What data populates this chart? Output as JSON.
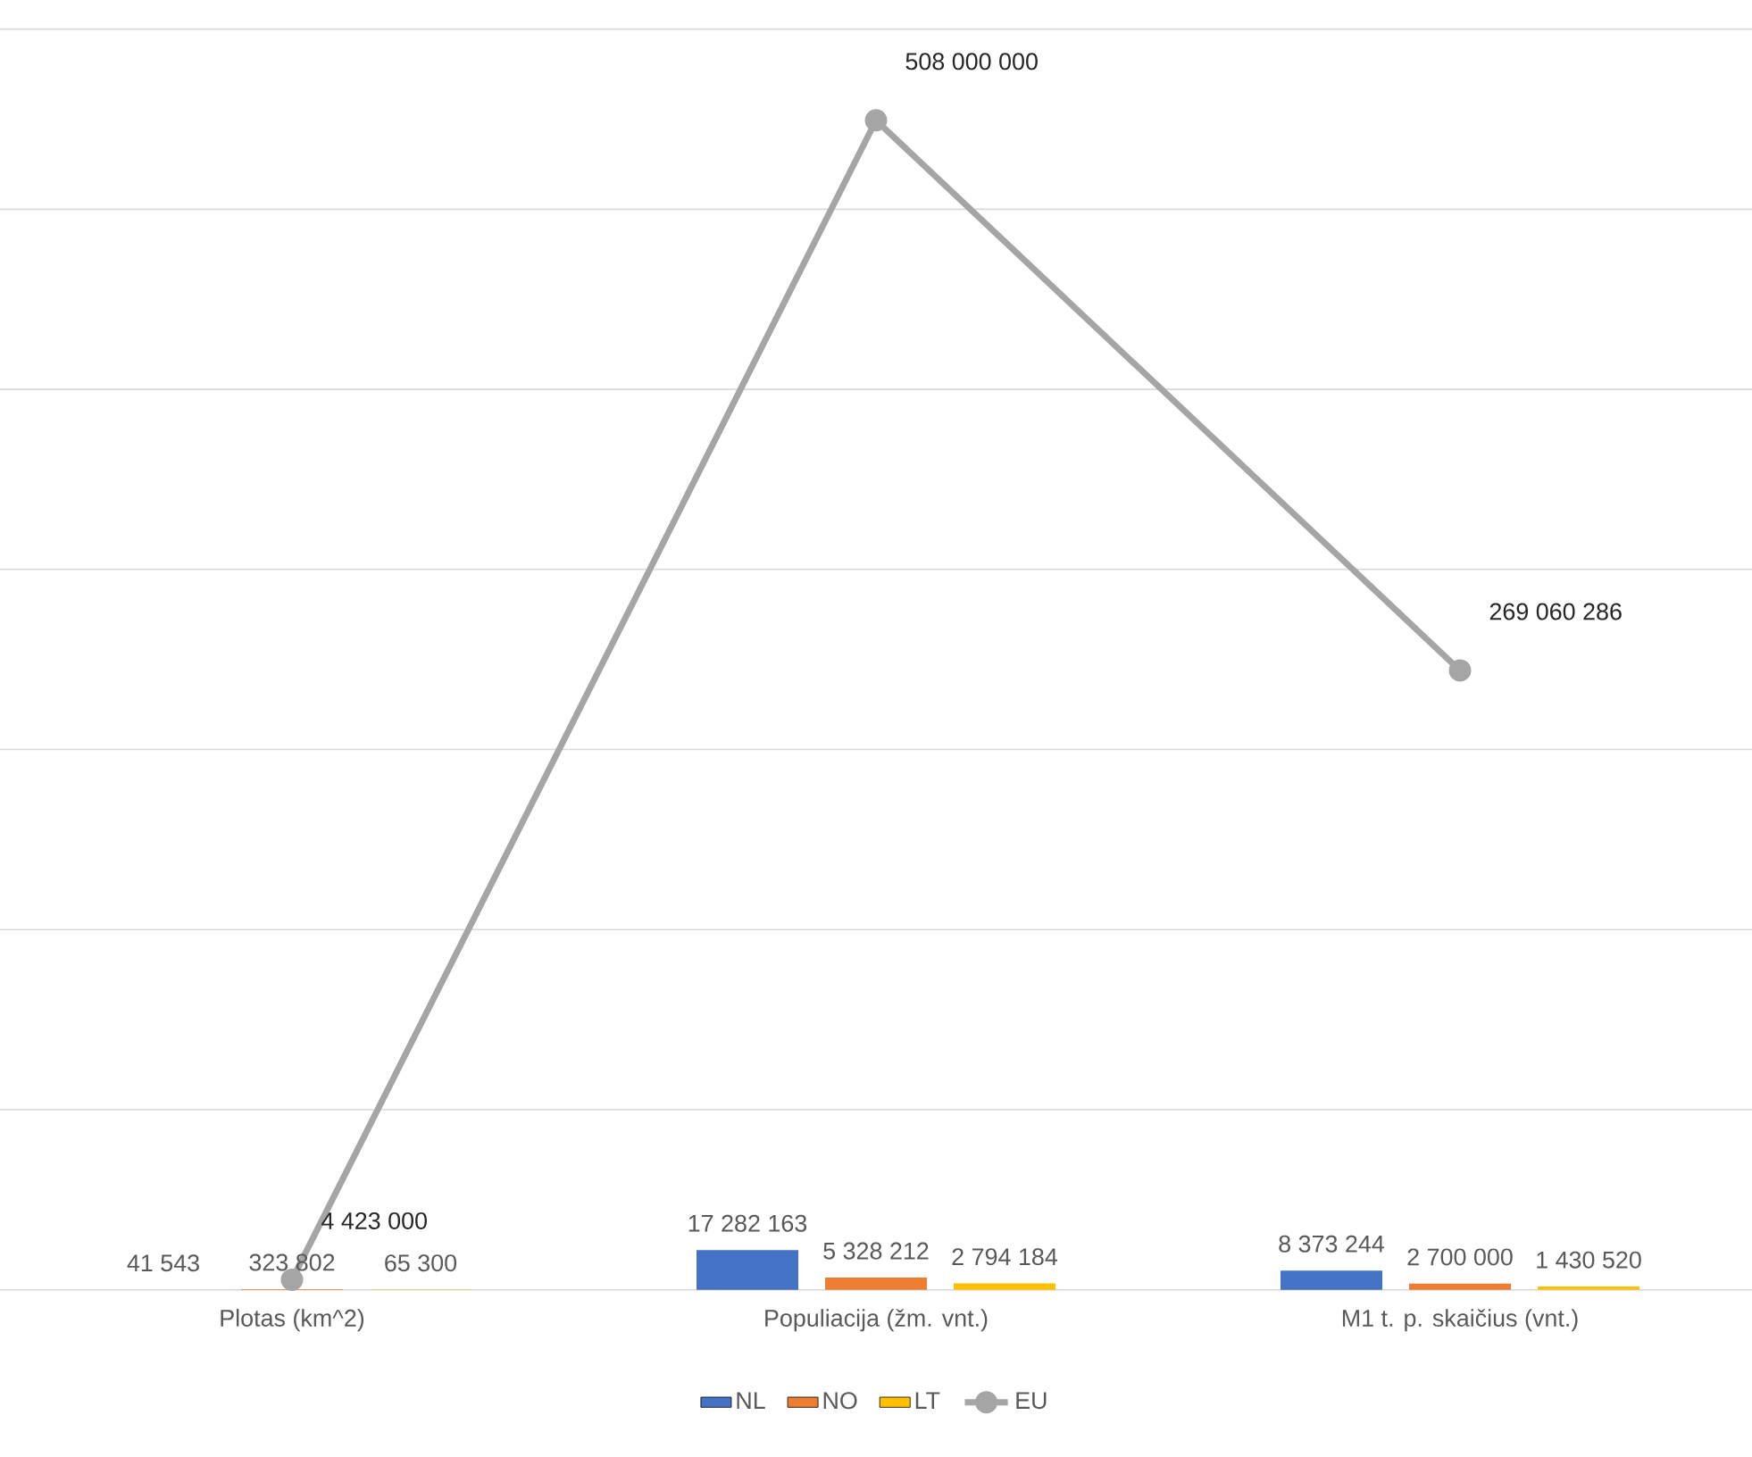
{
  "chart_data": {
    "type": "bar",
    "data_labels": true,
    "grid": "y",
    "legend": "bottom",
    "categories": [
      "Plotas (km^2)",
      "Populiacija (žm. vnt.)",
      "M1 t. p. skaičius (vnt.)"
    ],
    "series": [
      {
        "name": "NL",
        "color": "#4472c4",
        "values": [
          41543,
          17282163,
          8373244
        ]
      },
      {
        "name": "NO",
        "color": "#ed7d31",
        "values": [
          323802,
          5328212,
          2700000
        ]
      },
      {
        "name": "LT",
        "color": "#ffc000",
        "values": [
          65300,
          2794184,
          1430520
        ]
      },
      {
        "name": "EU",
        "type": "line",
        "marker": "circle",
        "color": "#a5a5a5",
        "values": [
          4423000,
          508000000,
          269060286
        ]
      }
    ]
  }
}
